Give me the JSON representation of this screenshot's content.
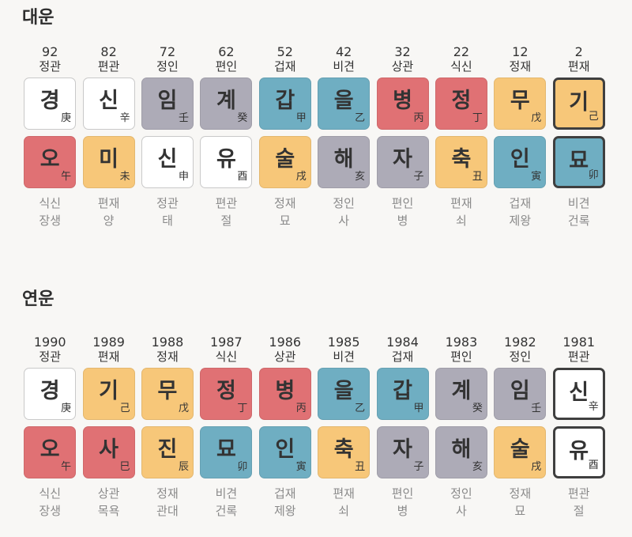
{
  "daeun": {
    "title": "대운",
    "columns": [
      {
        "num": "92",
        "top_god": "정관",
        "stem": {
          "char": "경",
          "hanja": "庚",
          "color": "white"
        },
        "branch": {
          "char": "오",
          "hanja": "午",
          "color": "red"
        },
        "bottom_god": "식신",
        "stage": "장생",
        "selected": false
      },
      {
        "num": "82",
        "top_god": "편관",
        "stem": {
          "char": "신",
          "hanja": "辛",
          "color": "white"
        },
        "branch": {
          "char": "미",
          "hanja": "未",
          "color": "yellow"
        },
        "bottom_god": "편재",
        "stage": "양",
        "selected": false
      },
      {
        "num": "72",
        "top_god": "정인",
        "stem": {
          "char": "임",
          "hanja": "壬",
          "color": "gray"
        },
        "branch": {
          "char": "신",
          "hanja": "申",
          "color": "white"
        },
        "bottom_god": "정관",
        "stage": "태",
        "selected": false
      },
      {
        "num": "62",
        "top_god": "편인",
        "stem": {
          "char": "계",
          "hanja": "癸",
          "color": "gray"
        },
        "branch": {
          "char": "유",
          "hanja": "酉",
          "color": "white"
        },
        "bottom_god": "편관",
        "stage": "절",
        "selected": false
      },
      {
        "num": "52",
        "top_god": "겁재",
        "stem": {
          "char": "갑",
          "hanja": "甲",
          "color": "blue"
        },
        "branch": {
          "char": "술",
          "hanja": "戌",
          "color": "yellow"
        },
        "bottom_god": "정재",
        "stage": "묘",
        "selected": false
      },
      {
        "num": "42",
        "top_god": "비견",
        "stem": {
          "char": "을",
          "hanja": "乙",
          "color": "blue"
        },
        "branch": {
          "char": "해",
          "hanja": "亥",
          "color": "gray"
        },
        "bottom_god": "정인",
        "stage": "사",
        "selected": false
      },
      {
        "num": "32",
        "top_god": "상관",
        "stem": {
          "char": "병",
          "hanja": "丙",
          "color": "red"
        },
        "branch": {
          "char": "자",
          "hanja": "子",
          "color": "gray"
        },
        "bottom_god": "편인",
        "stage": "병",
        "selected": false
      },
      {
        "num": "22",
        "top_god": "식신",
        "stem": {
          "char": "정",
          "hanja": "丁",
          "color": "red"
        },
        "branch": {
          "char": "축",
          "hanja": "丑",
          "color": "yellow"
        },
        "bottom_god": "편재",
        "stage": "쇠",
        "selected": false
      },
      {
        "num": "12",
        "top_god": "정재",
        "stem": {
          "char": "무",
          "hanja": "戊",
          "color": "yellow"
        },
        "branch": {
          "char": "인",
          "hanja": "寅",
          "color": "blue"
        },
        "bottom_god": "겁재",
        "stage": "제왕",
        "selected": false
      },
      {
        "num": "2",
        "top_god": "편재",
        "stem": {
          "char": "기",
          "hanja": "己",
          "color": "yellow"
        },
        "branch": {
          "char": "묘",
          "hanja": "卯",
          "color": "blue"
        },
        "bottom_god": "비견",
        "stage": "건록",
        "selected": true
      }
    ]
  },
  "yeonun": {
    "title": "연운",
    "columns": [
      {
        "num": "1990",
        "top_god": "정관",
        "stem": {
          "char": "경",
          "hanja": "庚",
          "color": "white"
        },
        "branch": {
          "char": "오",
          "hanja": "午",
          "color": "red"
        },
        "bottom_god": "식신",
        "stage": "장생",
        "selected": false
      },
      {
        "num": "1989",
        "top_god": "편재",
        "stem": {
          "char": "기",
          "hanja": "己",
          "color": "yellow"
        },
        "branch": {
          "char": "사",
          "hanja": "巳",
          "color": "red"
        },
        "bottom_god": "상관",
        "stage": "목욕",
        "selected": false
      },
      {
        "num": "1988",
        "top_god": "정재",
        "stem": {
          "char": "무",
          "hanja": "戊",
          "color": "yellow"
        },
        "branch": {
          "char": "진",
          "hanja": "辰",
          "color": "yellow"
        },
        "bottom_god": "정재",
        "stage": "관대",
        "selected": false
      },
      {
        "num": "1987",
        "top_god": "식신",
        "stem": {
          "char": "정",
          "hanja": "丁",
          "color": "red"
        },
        "branch": {
          "char": "묘",
          "hanja": "卯",
          "color": "blue"
        },
        "bottom_god": "비견",
        "stage": "건록",
        "selected": false
      },
      {
        "num": "1986",
        "top_god": "상관",
        "stem": {
          "char": "병",
          "hanja": "丙",
          "color": "red"
        },
        "branch": {
          "char": "인",
          "hanja": "寅",
          "color": "blue"
        },
        "bottom_god": "겁재",
        "stage": "제왕",
        "selected": false
      },
      {
        "num": "1985",
        "top_god": "비견",
        "stem": {
          "char": "을",
          "hanja": "乙",
          "color": "blue"
        },
        "branch": {
          "char": "축",
          "hanja": "丑",
          "color": "yellow"
        },
        "bottom_god": "편재",
        "stage": "쇠",
        "selected": false
      },
      {
        "num": "1984",
        "top_god": "겁재",
        "stem": {
          "char": "갑",
          "hanja": "甲",
          "color": "blue"
        },
        "branch": {
          "char": "자",
          "hanja": "子",
          "color": "gray"
        },
        "bottom_god": "편인",
        "stage": "병",
        "selected": false
      },
      {
        "num": "1983",
        "top_god": "편인",
        "stem": {
          "char": "계",
          "hanja": "癸",
          "color": "gray"
        },
        "branch": {
          "char": "해",
          "hanja": "亥",
          "color": "gray"
        },
        "bottom_god": "정인",
        "stage": "사",
        "selected": false
      },
      {
        "num": "1982",
        "top_god": "정인",
        "stem": {
          "char": "임",
          "hanja": "壬",
          "color": "gray"
        },
        "branch": {
          "char": "술",
          "hanja": "戌",
          "color": "yellow"
        },
        "bottom_god": "정재",
        "stage": "묘",
        "selected": false
      },
      {
        "num": "1981",
        "top_god": "편관",
        "stem": {
          "char": "신",
          "hanja": "辛",
          "color": "white"
        },
        "branch": {
          "char": "유",
          "hanja": "酉",
          "color": "white"
        },
        "bottom_god": "편관",
        "stage": "절",
        "selected": true
      }
    ]
  },
  "colors": {
    "white": "#ffffff",
    "gray": "#adabb7",
    "blue": "#6faec2",
    "red": "#e07174",
    "yellow": "#f7c779",
    "background": "#f8f7f5"
  }
}
